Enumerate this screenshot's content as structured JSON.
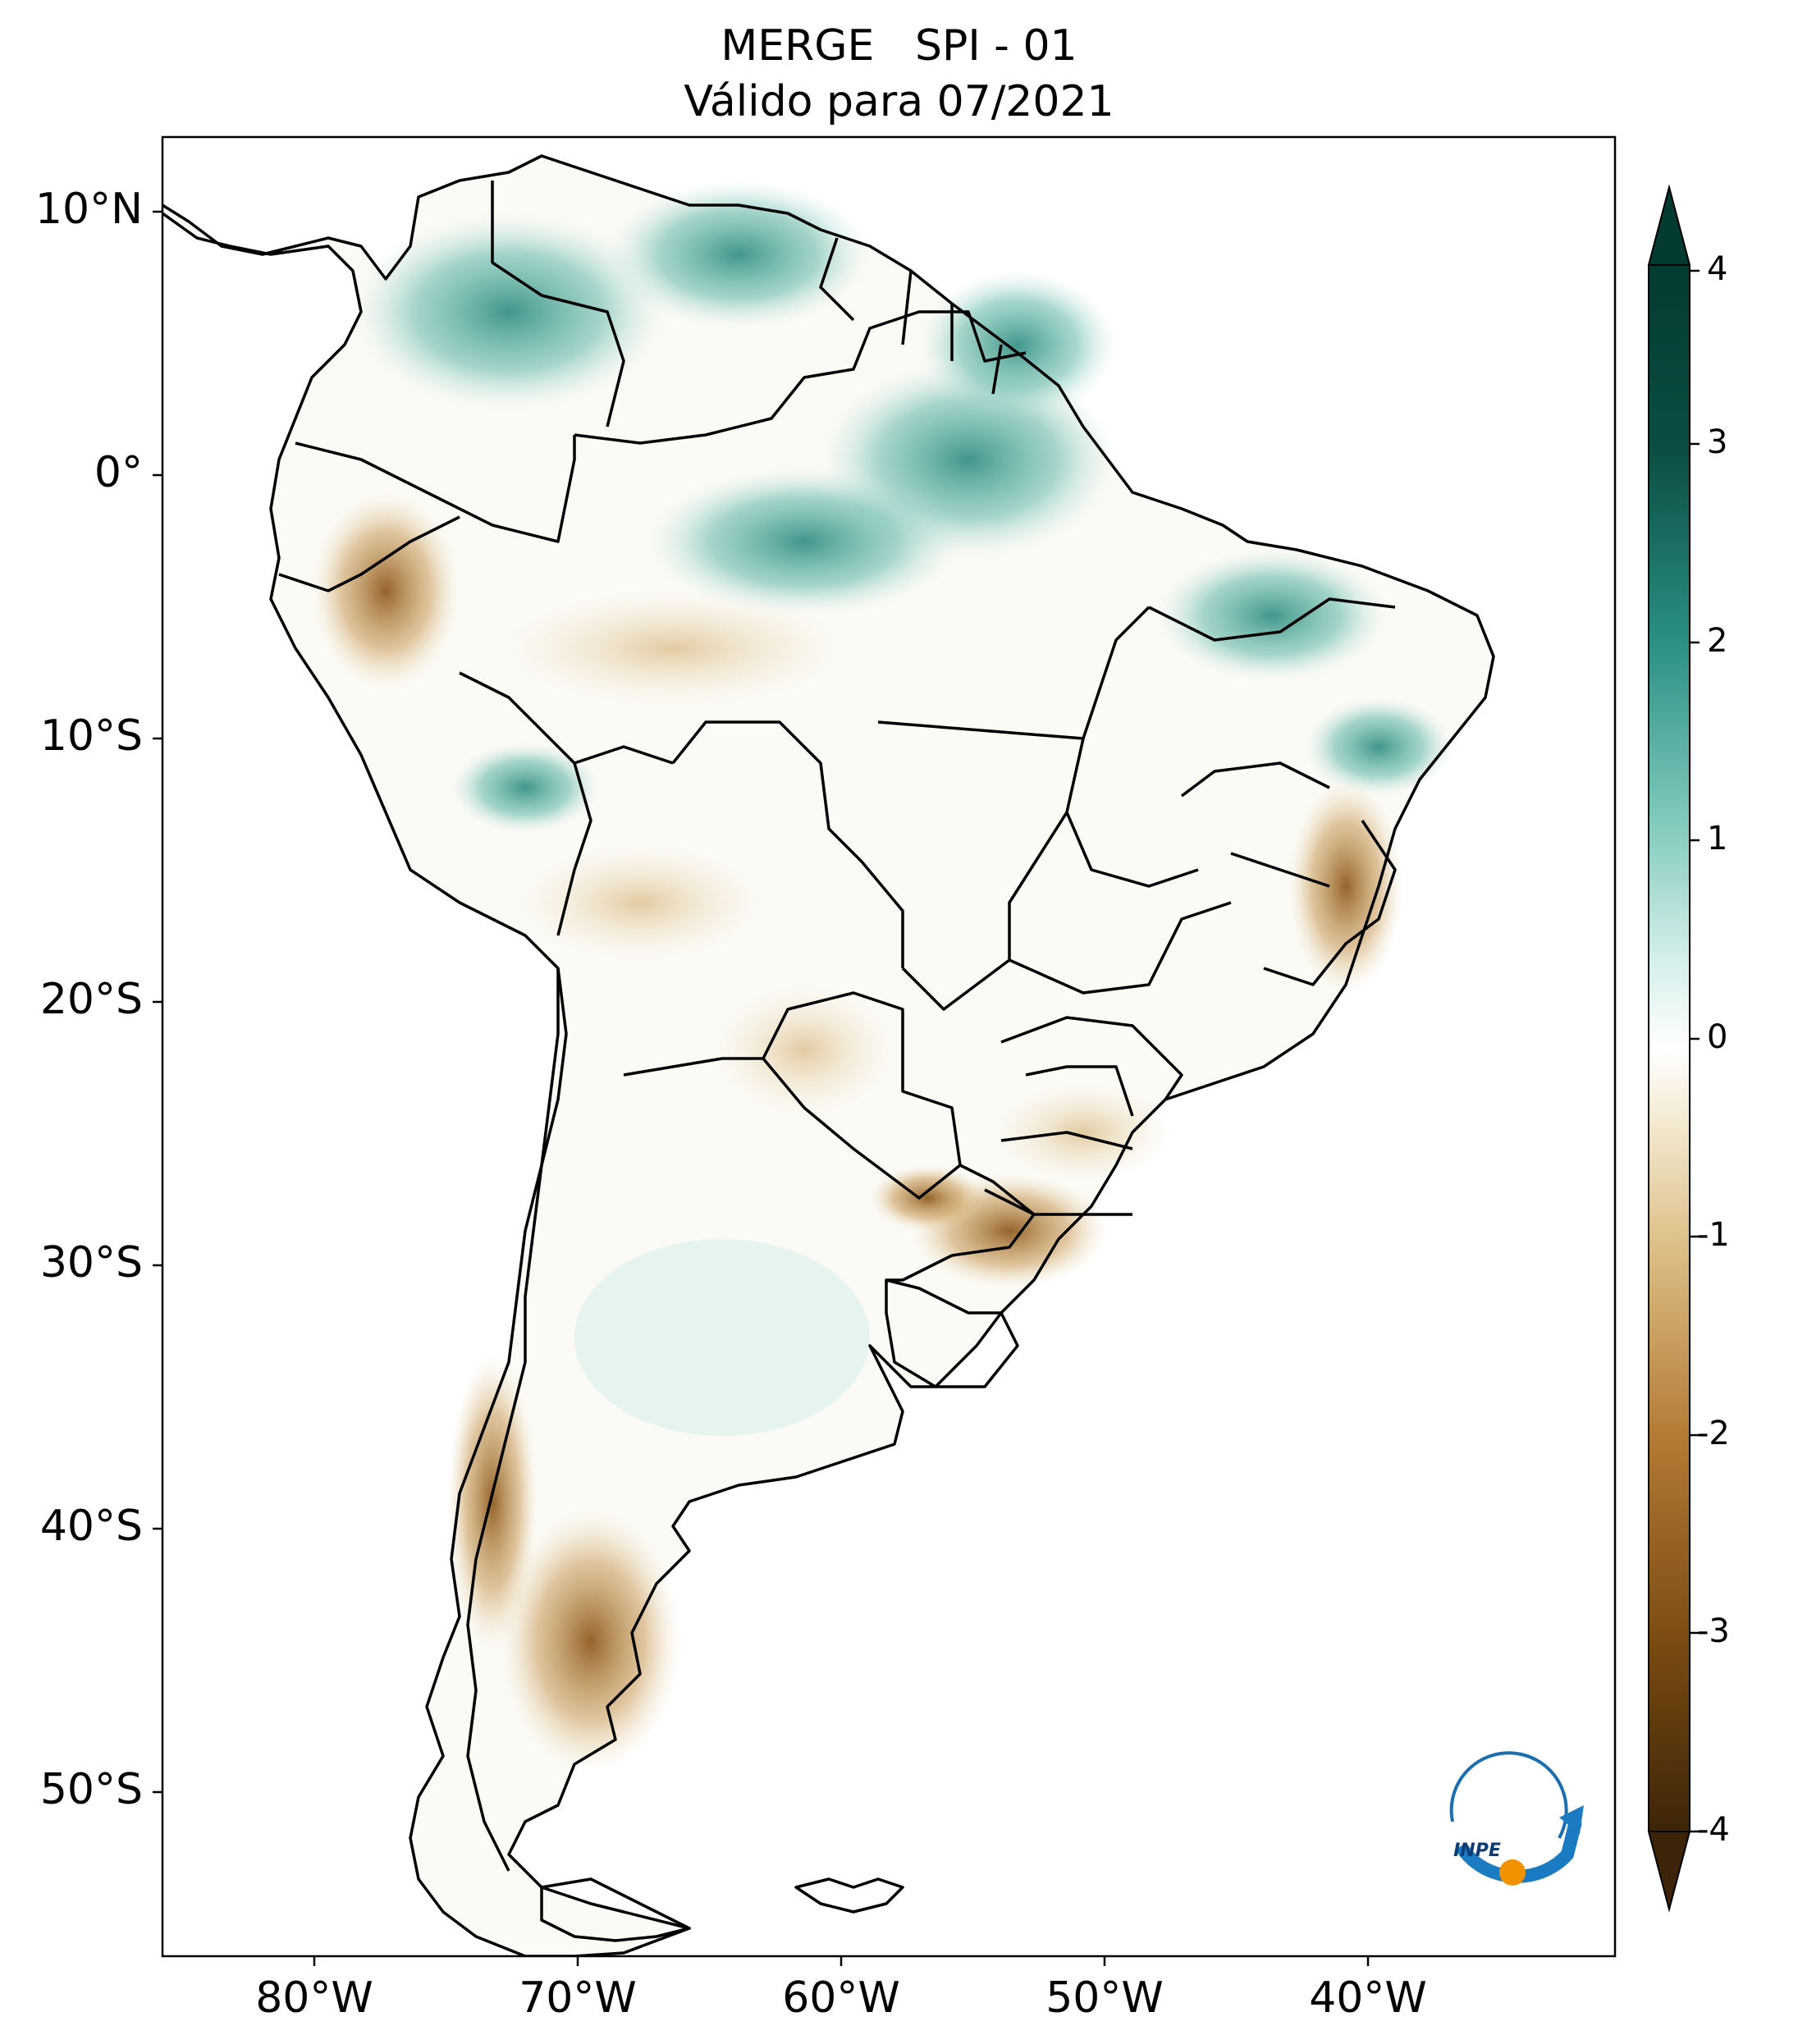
{
  "title": {
    "line1": "MERGE   SPI - 01",
    "line2": "Válido para 07/2021"
  },
  "axes": {
    "lat_labels": [
      "10°N",
      "0°",
      "10°S",
      "20°S",
      "30°S",
      "40°S",
      "50°S"
    ],
    "lon_labels": [
      "80°W",
      "70°W",
      "60°W",
      "50°W",
      "40°W"
    ]
  },
  "colorbar": {
    "ticks": [
      "4",
      "3",
      "2",
      "1",
      "0",
      "-1",
      "-2",
      "-3",
      "-4"
    ],
    "palette": [
      "#3d2408",
      "#7a4b12",
      "#b27a34",
      "#dcbd84",
      "#f3e8cf",
      "#ffffff",
      "#d2eee9",
      "#7cc7ba",
      "#2a8f82",
      "#0c4e44",
      "#033a31"
    ]
  },
  "logo": {
    "text": "INPE"
  },
  "colors": {
    "wet": "#2f9a8a",
    "dry": "#a86d24",
    "border": "#000000"
  }
}
